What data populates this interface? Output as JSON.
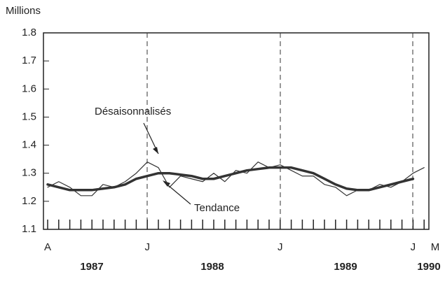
{
  "chart_data": {
    "type": "line",
    "y_label": "Millions",
    "categories": [
      "A",
      null,
      null,
      null,
      null,
      null,
      null,
      null,
      null,
      "J",
      null,
      null,
      null,
      null,
      null,
      null,
      null,
      null,
      null,
      null,
      null,
      "J",
      null,
      null,
      null,
      null,
      null,
      null,
      null,
      null,
      null,
      null,
      null,
      "J",
      null,
      "M"
    ],
    "year_labels": [
      "1987",
      "1988",
      "1989",
      "1990"
    ],
    "series": [
      {
        "name": "Désaisonnalisés",
        "color": "#333333",
        "values": [
          1.25,
          1.27,
          1.25,
          1.22,
          1.22,
          1.26,
          1.25,
          1.27,
          1.3,
          1.34,
          1.32,
          1.25,
          1.29,
          1.28,
          1.27,
          1.3,
          1.27,
          1.31,
          1.3,
          1.34,
          1.32,
          1.33,
          1.31,
          1.29,
          1.29,
          1.26,
          1.25,
          1.22,
          1.24,
          1.24,
          1.26,
          1.25,
          1.27,
          1.3,
          1.32,
          null
        ]
      },
      {
        "name": "Tendance",
        "color": "#333333",
        "values": [
          1.26,
          1.25,
          1.24,
          1.24,
          1.24,
          1.245,
          1.25,
          1.26,
          1.28,
          1.29,
          1.3,
          1.3,
          1.295,
          1.29,
          1.28,
          1.28,
          1.29,
          1.3,
          1.31,
          1.315,
          1.32,
          1.32,
          1.32,
          1.31,
          1.3,
          1.28,
          1.26,
          1.245,
          1.24,
          1.24,
          1.25,
          1.26,
          1.27,
          1.28,
          null,
          null
        ]
      }
    ],
    "ylim": [
      1.1,
      1.8
    ],
    "yticks": [
      1.1,
      1.2,
      1.3,
      1.4,
      1.5,
      1.6,
      1.7,
      1.8
    ],
    "grid": false
  }
}
